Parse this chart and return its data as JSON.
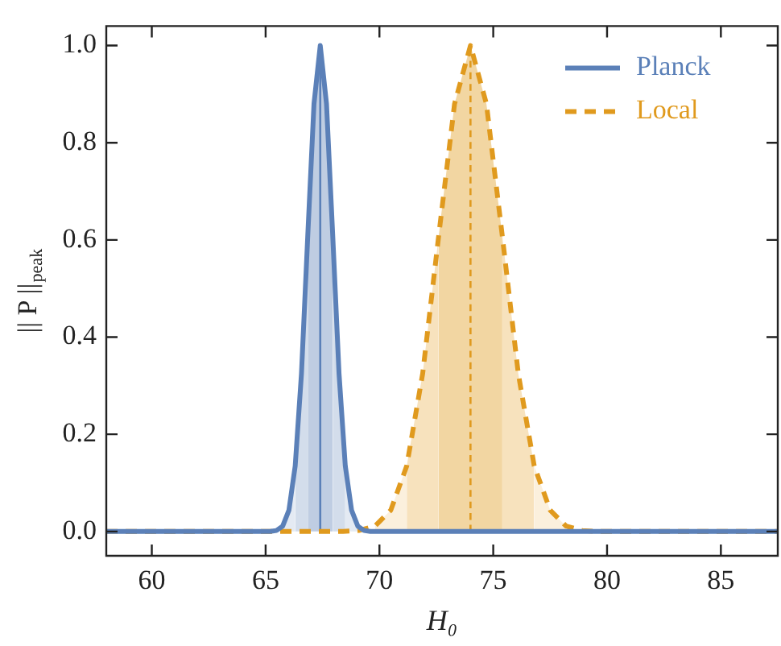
{
  "chart_data": {
    "type": "line",
    "xlabel": "H₀",
    "ylabel": "|| P ||$_{peak}$",
    "xlim": [
      58,
      87.5
    ],
    "ylim": [
      -0.05,
      1.04
    ],
    "xticks": [
      60,
      65,
      70,
      75,
      80,
      85
    ],
    "yticks": [
      {
        "value": 0,
        "label": "0.0"
      },
      {
        "value": 0.2,
        "label": "0.2"
      },
      {
        "value": 0.4,
        "label": "0.4"
      },
      {
        "value": 0.6,
        "label": "0.6"
      },
      {
        "value": 0.8,
        "label": "0.8"
      },
      {
        "value": 1,
        "label": "1.0"
      }
    ],
    "grid": false,
    "legend": "top right",
    "marker": "none",
    "series": [
      {
        "type": "area",
        "color": "#fbf0dd",
        "x": [
          69.8,
          70.5,
          71.2
        ],
        "values": [
          0.011,
          0.044,
          0.135
        ]
      },
      {
        "type": "area",
        "color": "#fbf0dd",
        "x": [
          76.8,
          77.5,
          78.2
        ],
        "values": [
          0.135,
          0.044,
          0.011
        ]
      },
      {
        "type": "area",
        "color": "#f7e2bd",
        "x": [
          71.2,
          71.9,
          72.6
        ],
        "values": [
          0.135,
          0.325,
          0.607
        ]
      },
      {
        "type": "area",
        "color": "#f7e2bd",
        "x": [
          75.4,
          76.1,
          76.8
        ],
        "values": [
          0.607,
          0.325,
          0.135
        ]
      },
      {
        "type": "area",
        "color": "#f2d6a2",
        "x": [
          72.6,
          73.3,
          74,
          74.7,
          75.4
        ],
        "values": [
          0.607,
          0.88,
          1,
          0.88,
          0.607
        ]
      },
      {
        "type": "area",
        "color": "#e4eaf3",
        "x": [
          65.75,
          66.025,
          66.3
        ],
        "values": [
          0.011,
          0.044,
          0.135
        ]
      },
      {
        "type": "area",
        "color": "#e4eaf3",
        "x": [
          68.5,
          68.775,
          69.05
        ],
        "values": [
          0.135,
          0.044,
          0.011
        ]
      },
      {
        "type": "area",
        "color": "#d3ddeb",
        "x": [
          66.3,
          66.575,
          66.85
        ],
        "values": [
          0.135,
          0.325,
          0.607
        ]
      },
      {
        "type": "area",
        "color": "#d3ddeb",
        "x": [
          67.95,
          68.225,
          68.5
        ],
        "values": [
          0.607,
          0.325,
          0.135
        ]
      },
      {
        "type": "area",
        "color": "#bfcde2",
        "x": [
          66.85,
          67.125,
          67.4,
          67.675,
          67.95
        ],
        "values": [
          0.607,
          0.88,
          1,
          0.88,
          0.607
        ]
      },
      {
        "type": "line",
        "color": "#e09a1e",
        "line_style": "dashed",
        "x": [
          74,
          74
        ],
        "values": [
          0,
          1
        ]
      },
      {
        "type": "line",
        "color": "#5b80b8",
        "line_style": "solid",
        "x": [
          67.4,
          67.4
        ],
        "values": [
          0,
          1
        ]
      },
      {
        "name": "Local",
        "color": "#e09a1e",
        "line_style": "dashed",
        "x": [
          58,
          68.4,
          69.1,
          69.8,
          70.5,
          71.2,
          71.9,
          72.6,
          73.3,
          74,
          74.7,
          75.4,
          76.1,
          76.8,
          77.5,
          78.2,
          78.9,
          79.6,
          87.5
        ],
        "values": [
          0,
          0,
          0.002,
          0.011,
          0.044,
          0.135,
          0.325,
          0.607,
          0.88,
          1,
          0.88,
          0.607,
          0.325,
          0.135,
          0.044,
          0.011,
          0.002,
          0,
          0
        ]
      },
      {
        "name": "Planck",
        "color": "#5b80b8",
        "line_style": "solid",
        "x": [
          58,
          65.2,
          65.475,
          65.75,
          66.025,
          66.3,
          66.575,
          66.85,
          67.125,
          67.4,
          67.675,
          67.95,
          68.225,
          68.5,
          68.775,
          69.05,
          69.325,
          69.6,
          87.5
        ],
        "values": [
          0,
          0,
          0.002,
          0.011,
          0.044,
          0.135,
          0.325,
          0.607,
          0.88,
          1,
          0.88,
          0.607,
          0.325,
          0.135,
          0.044,
          0.011,
          0.002,
          0,
          0
        ]
      }
    ]
  }
}
